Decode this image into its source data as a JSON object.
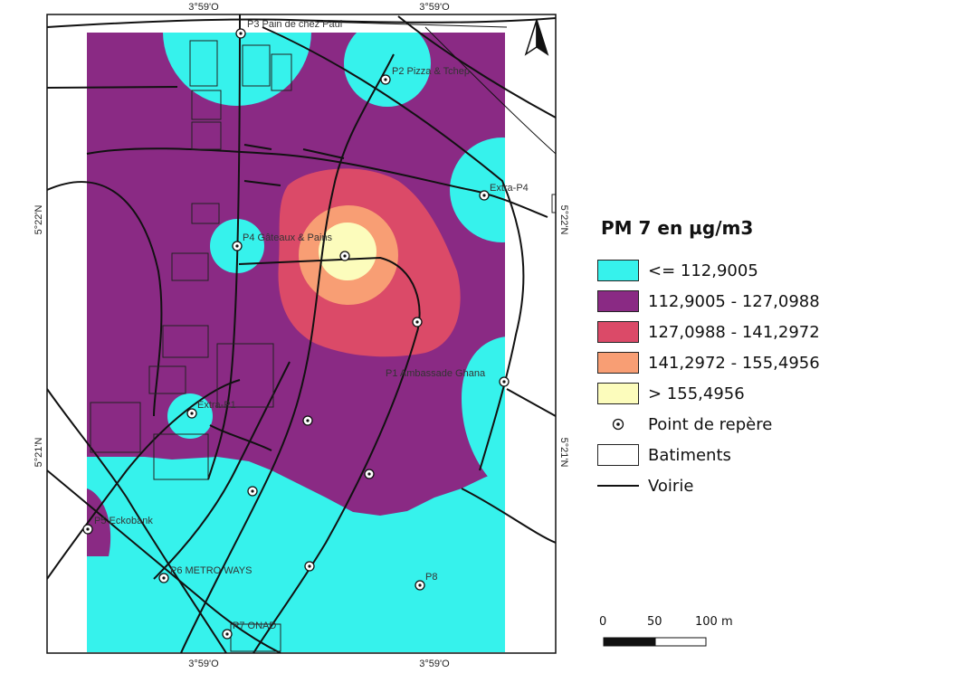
{
  "map": {
    "graticule": {
      "top_left": "3°59'O",
      "top_right": "3°59'O",
      "bottom_left": "3°59'O",
      "bottom_right": "3°59'O",
      "left_top": "5°22'N",
      "left_bottom": "5°21'N",
      "right_top": "5°22'N",
      "right_bottom": "5°21'N"
    },
    "north_arrow_icon": "north-arrow-icon",
    "points": {
      "p3": "P3 Pain de chez Paul",
      "p2": "P2 Pizza & Tchep",
      "extra_p4": "Extra-P4",
      "p4": "P4 Gâteaux & Pains",
      "p1": "P1 Ambassade Ghana",
      "extra_p1": "Extra-P1",
      "p5": "P5 Eckobank",
      "p6": "P6 METRO WAYS",
      "p8": "P8",
      "p7": "P7 ONAD"
    }
  },
  "legend": {
    "title": "PM 7 en µg/m3",
    "classes": [
      {
        "label": "<= 112,9005",
        "color": "#36f2ec"
      },
      {
        "label": "112,9005 - 127,0988",
        "color": "#8a2a84"
      },
      {
        "label": "127,0988 - 141,2972",
        "color": "#db4a68"
      },
      {
        "label": "141,2972 - 155,4956",
        "color": "#f89e74"
      },
      {
        "label": "> 155,4956",
        "color": "#fcfcbc"
      }
    ],
    "point_label": "Point de repère",
    "building_label": "Batiments",
    "road_label": "Voirie"
  },
  "scale_bar": {
    "labels": [
      "0",
      "50",
      "100 m"
    ]
  }
}
